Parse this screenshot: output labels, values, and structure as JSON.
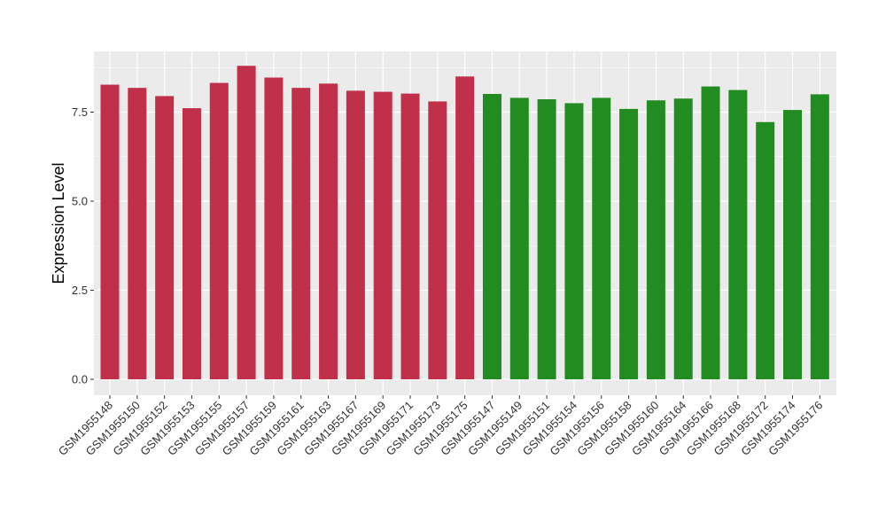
{
  "chart_data": {
    "type": "bar",
    "title": "",
    "xlabel": "",
    "ylabel": "Expression Level",
    "ylim": [
      0,
      8.85
    ],
    "yticks": [
      0.0,
      2.5,
      5.0,
      7.5
    ],
    "ytick_labels": [
      "0.0",
      "2.5",
      "5.0",
      "7.5"
    ],
    "grid": true,
    "legend": "none",
    "background": "#EBEBEB",
    "grid_color": "#FFFFFF",
    "categories": [
      "GSM1955148",
      "GSM1955150",
      "GSM1955152",
      "GSM1955153",
      "GSM1955155",
      "GSM1955157",
      "GSM1955159",
      "GSM1955161",
      "GSM1955163",
      "GSM1955167",
      "GSM1955169",
      "GSM1955171",
      "GSM1955173",
      "GSM1955175",
      "GSM1955147",
      "GSM1955149",
      "GSM1955151",
      "GSM1955154",
      "GSM1955156",
      "GSM1955158",
      "GSM1955160",
      "GSM1955164",
      "GSM1955166",
      "GSM1955168",
      "GSM1955172",
      "GSM1955174",
      "GSM1955176"
    ],
    "values": [
      8.27,
      8.18,
      7.95,
      7.61,
      8.32,
      8.8,
      8.47,
      8.18,
      8.3,
      8.1,
      8.07,
      8.02,
      7.8,
      8.5,
      8.01,
      7.9,
      7.86,
      7.75,
      7.9,
      7.59,
      7.83,
      7.88,
      8.22,
      8.12,
      7.22,
      7.56,
      8.0
    ],
    "group_sizes": [
      14,
      13
    ],
    "group_colors": [
      "#C0304A",
      "#228B22"
    ]
  }
}
